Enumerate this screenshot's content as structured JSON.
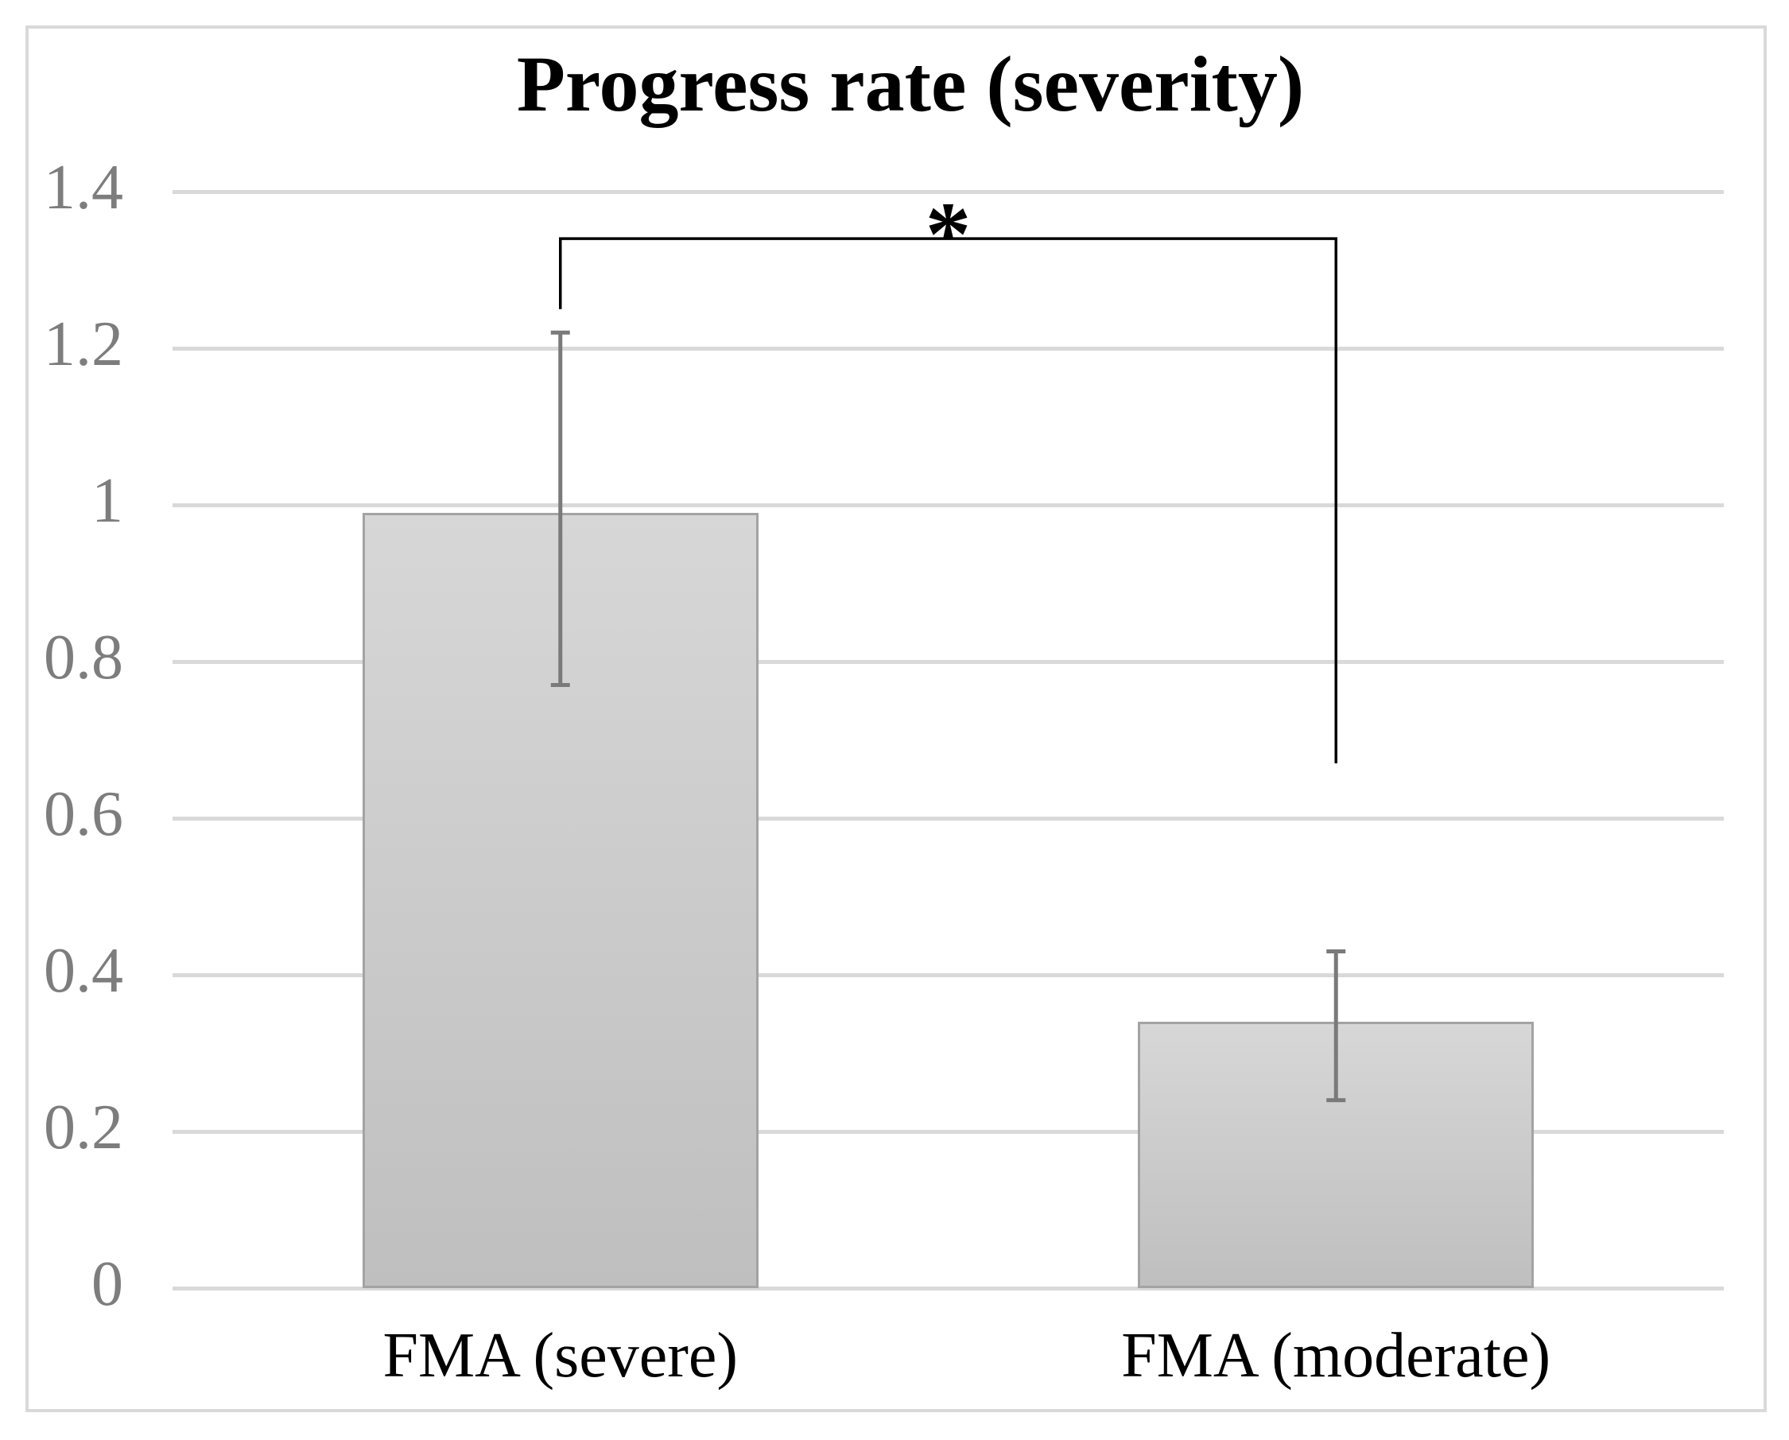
{
  "chart_data": {
    "type": "bar",
    "title": "Progress rate (severity)",
    "categories": [
      "FMA (severe)",
      "FMA (moderate)"
    ],
    "values": [
      0.99,
      0.34
    ],
    "error_bars": {
      "low": [
        0.77,
        0.24
      ],
      "high": [
        1.22,
        0.43
      ]
    },
    "ylim": [
      0,
      1.4
    ],
    "ytick_step": 0.2,
    "ytick_labels": [
      "0",
      "0.2",
      "0.4",
      "0.6",
      "0.8",
      "1",
      "1.2",
      "1.4"
    ],
    "xlabel": "",
    "ylabel": "",
    "grid": true,
    "legend": false,
    "significance": {
      "symbol": "*",
      "between": [
        "FMA (severe)",
        "FMA (moderate)"
      ],
      "bracket_top_value": 1.34,
      "left_drop_value": 1.25,
      "right_drop_value": 0.67
    },
    "colors": {
      "background": "#ffffff",
      "frame_border": "#d9d9d9",
      "gridline": "#d9d9d9",
      "bar_fill_top": "#d7d7d7",
      "bar_fill_bottom": "#bfbfbf",
      "bar_border": "#a3a3a3",
      "error_bar": "#7a7a7a",
      "tick_label": "#7d7d7d",
      "category_label": "#000000",
      "title": "#000000",
      "bracket": "#000000"
    }
  }
}
